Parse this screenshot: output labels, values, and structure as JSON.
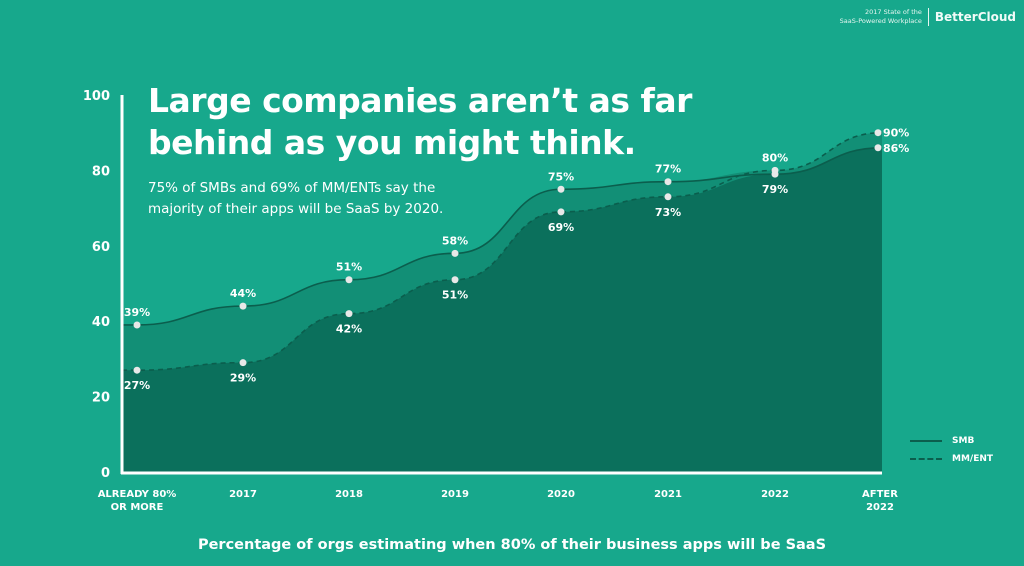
{
  "brand": {
    "subtitle_line1": "2017 State of the",
    "subtitle_line2": "SaaS-Powered Workplace",
    "name": "BetterCloud"
  },
  "headline": {
    "line1": "Large companies aren’t as far",
    "line2": "behind as you might think."
  },
  "subtitle": "75% of SMBs and 69% of MM/ENTs say the majority of their apps will be SaaS by 2020.",
  "colors": {
    "background": "#17a88c",
    "smb_area": "#128f76",
    "mmEnt_area": "#0b705c",
    "line": "#0b5e4d",
    "point": "#e8e8e8"
  },
  "chart_data": {
    "type": "area",
    "title": "",
    "xlabel": "Percentage of orgs estimating when 80% of their business apps will be SaaS",
    "ylabel": "",
    "ylim": [
      0,
      100
    ],
    "yticks": [
      0,
      20,
      40,
      60,
      80,
      100
    ],
    "categories": [
      "ALREADY 80%|OR MORE",
      "2017",
      "2018",
      "2019",
      "2020",
      "2021",
      "2022",
      "AFTER|2022"
    ],
    "grid": false,
    "legend": "bottom-right",
    "series": [
      {
        "name": "SMB",
        "style": "solid",
        "values": [
          39,
          44,
          51,
          58,
          75,
          77,
          79,
          86
        ],
        "labels": [
          "39%",
          "44%",
          "51%",
          "58%",
          "75%",
          "77%",
          "79%",
          "86%"
        ]
      },
      {
        "name": "MM/ENT",
        "style": "dashed",
        "values": [
          27,
          29,
          42,
          51,
          69,
          73,
          80,
          90
        ],
        "labels": [
          "27%",
          "29%",
          "42%",
          "51%",
          "69%",
          "73%",
          "80%",
          "90%"
        ]
      }
    ]
  }
}
